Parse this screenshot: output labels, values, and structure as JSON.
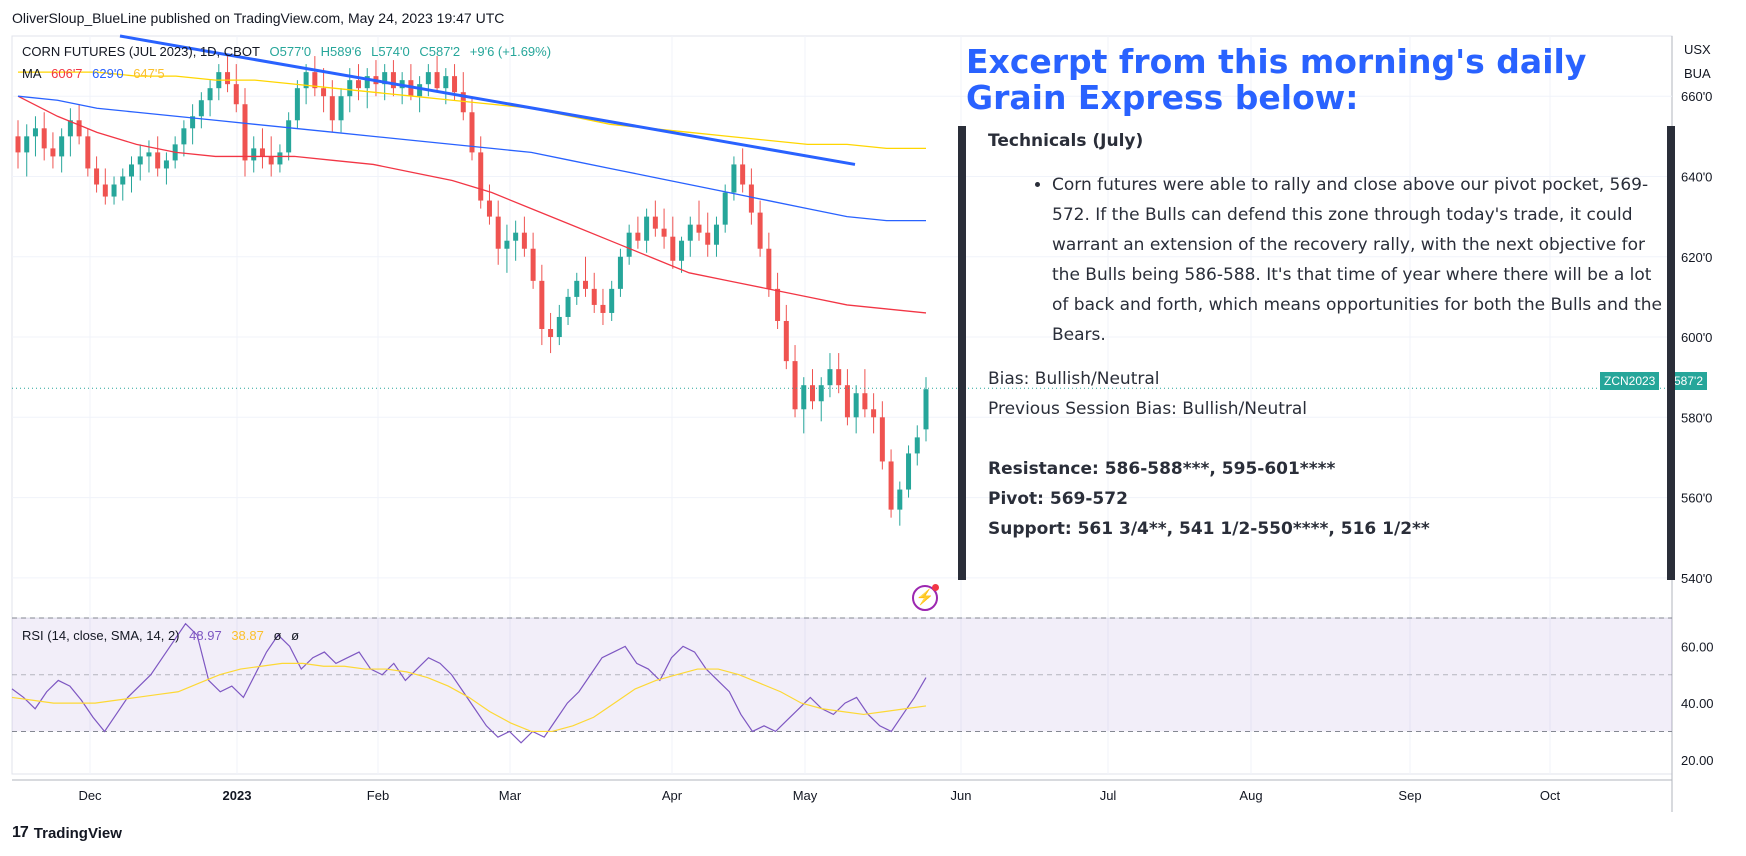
{
  "header": {
    "publisher": "OliverSloup_BlueLine published on TradingView.com, May 24, 2023 19:47 UTC"
  },
  "footer": {
    "brand": "TradingView",
    "logo_glyph": "17"
  },
  "legend": {
    "symbol_line": "CORN FUTURES (JUL 2023), 1D, CBOT",
    "ohlc": {
      "o": "O577'0",
      "h": "H589'6",
      "l": "L574'0",
      "c": "C587'2",
      "chg": "+9'6 (+1.69%)"
    },
    "ma_label": "MA",
    "ma_values": [
      "606'7",
      "629'0",
      "647'5"
    ],
    "rsi_line": "RSI (14, close, SMA, 14, 2)",
    "rsi_value": "48.97",
    "rsi_sma": "38.87",
    "rsi_extra": [
      "ø",
      "ø"
    ]
  },
  "axis": {
    "currency": "USX",
    "unit": "BUA",
    "price_ticks": [
      "660'0",
      "640'0",
      "620'0",
      "600'0",
      "580'0",
      "560'0",
      "540'0"
    ],
    "rsi_ticks": [
      "60.00",
      "40.00",
      "20.00"
    ],
    "time_ticks": [
      "Dec",
      "2023",
      "Feb",
      "Mar",
      "Apr",
      "May",
      "Jun",
      "Jul",
      "Aug",
      "Sep",
      "Oct"
    ],
    "last_symbol": "ZCN2023",
    "last_price": "587'2"
  },
  "colors": {
    "up": "#26a69a",
    "down": "#ef5350",
    "ma1": "#f23645",
    "ma2": "#2962ff",
    "ma3": "#ffd600",
    "rsi": "#7e57c2",
    "rsi_sma": "#fdd835",
    "trend": "#2962ff",
    "excerpt": "#2962ff"
  },
  "overlay": {
    "title": "Excerpt from this morning's daily Grain Express below:",
    "heading": "Technicals (July)",
    "bullet": "Corn futures were able to rally and close above our pivot pocket, 569-572.  If the Bulls can defend this zone through today's trade, it could warrant an extension of the recovery rally, with the next objective for the Bulls being 586-588.  It's that time of year where there will be a lot of back and forth, which means opportunities for both the Bulls and the Bears.",
    "bias": "Bias: Bullish/Neutral",
    "prev_bias": "Previous Session Bias: Bullish/Neutral",
    "resistance": "Resistance: 586-588***, 595-601****",
    "pivot": "Pivot: 569-572",
    "support": "Support: 561 3/4**, 541 1/2-550****, 516 1/2**"
  },
  "chart_data": [
    {
      "type": "candlestick",
      "title": "CORN FUTURES (JUL 2023), 1D, CBOT",
      "ylim": [
        530,
        675
      ],
      "grid": true,
      "candles_ohlc": [
        [
          650,
          654,
          642,
          646
        ],
        [
          646,
          653,
          640,
          650
        ],
        [
          650,
          655,
          645,
          652
        ],
        [
          652,
          656,
          644,
          647
        ],
        [
          647,
          651,
          642,
          645
        ],
        [
          645,
          652,
          641,
          650
        ],
        [
          650,
          657,
          645,
          654
        ],
        [
          654,
          658,
          648,
          650
        ],
        [
          650,
          652,
          640,
          642
        ],
        [
          642,
          645,
          636,
          638
        ],
        [
          638,
          642,
          633,
          635
        ],
        [
          635,
          640,
          633,
          638
        ],
        [
          638,
          642,
          634,
          640
        ],
        [
          640,
          645,
          636,
          643
        ],
        [
          643,
          648,
          639,
          645
        ],
        [
          645,
          649,
          641,
          646
        ],
        [
          646,
          650,
          640,
          642
        ],
        [
          642,
          646,
          638,
          644
        ],
        [
          644,
          650,
          642,
          648
        ],
        [
          648,
          654,
          645,
          652
        ],
        [
          652,
          658,
          648,
          655
        ],
        [
          655,
          661,
          652,
          659
        ],
        [
          659,
          664,
          655,
          662
        ],
        [
          662,
          668,
          659,
          666
        ],
        [
          666,
          670,
          661,
          663
        ],
        [
          663,
          668,
          656,
          658
        ],
        [
          658,
          662,
          640,
          644
        ],
        [
          644,
          650,
          641,
          647
        ],
        [
          647,
          652,
          642,
          645
        ],
        [
          645,
          650,
          640,
          643
        ],
        [
          643,
          648,
          641,
          646
        ],
        [
          646,
          656,
          644,
          654
        ],
        [
          654,
          664,
          652,
          662
        ],
        [
          662,
          668,
          658,
          666
        ],
        [
          666,
          670,
          660,
          662
        ],
        [
          662,
          667,
          656,
          660
        ],
        [
          660,
          664,
          651,
          654
        ],
        [
          654,
          662,
          651,
          660
        ],
        [
          660,
          667,
          656,
          664
        ],
        [
          664,
          668,
          659,
          662
        ],
        [
          662,
          667,
          657,
          665
        ],
        [
          665,
          669,
          660,
          663
        ],
        [
          663,
          668,
          659,
          666
        ],
        [
          666,
          669,
          660,
          662
        ],
        [
          662,
          666,
          658,
          664
        ],
        [
          664,
          668,
          659,
          660
        ],
        [
          660,
          665,
          656,
          663
        ],
        [
          663,
          668,
          660,
          666
        ],
        [
          666,
          670,
          661,
          662
        ],
        [
          662,
          667,
          658,
          665
        ],
        [
          665,
          668,
          659,
          661
        ],
        [
          661,
          666,
          654,
          656
        ],
        [
          656,
          660,
          644,
          646
        ],
        [
          646,
          650,
          632,
          634
        ],
        [
          634,
          638,
          628,
          630
        ],
        [
          630,
          634,
          618,
          622
        ],
        [
          622,
          628,
          616,
          624
        ],
        [
          624,
          629,
          619,
          626
        ],
        [
          626,
          630,
          620,
          622
        ],
        [
          622,
          626,
          612,
          614
        ],
        [
          614,
          618,
          598,
          602
        ],
        [
          602,
          606,
          596,
          600
        ],
        [
          600,
          608,
          598,
          605
        ],
        [
          605,
          612,
          603,
          610
        ],
        [
          610,
          616,
          608,
          614
        ],
        [
          614,
          620,
          610,
          612
        ],
        [
          612,
          616,
          606,
          608
        ],
        [
          608,
          612,
          603,
          606
        ],
        [
          606,
          614,
          604,
          612
        ],
        [
          612,
          622,
          610,
          620
        ],
        [
          620,
          628,
          618,
          626
        ],
        [
          626,
          630,
          622,
          624
        ],
        [
          624,
          632,
          621,
          630
        ],
        [
          630,
          634,
          625,
          627
        ],
        [
          627,
          632,
          622,
          625
        ],
        [
          625,
          630,
          617,
          619
        ],
        [
          619,
          625,
          616,
          624
        ],
        [
          624,
          630,
          620,
          628
        ],
        [
          628,
          634,
          624,
          626
        ],
        [
          626,
          631,
          620,
          623
        ],
        [
          623,
          630,
          620,
          628
        ],
        [
          628,
          638,
          626,
          636
        ],
        [
          636,
          645,
          634,
          643
        ],
        [
          643,
          647,
          636,
          638
        ],
        [
          638,
          642,
          628,
          631
        ],
        [
          631,
          634,
          620,
          622
        ],
        [
          622,
          626,
          610,
          612
        ],
        [
          612,
          616,
          602,
          604
        ],
        [
          604,
          608,
          592,
          594
        ],
        [
          594,
          598,
          580,
          582
        ],
        [
          582,
          590,
          576,
          588
        ],
        [
          588,
          592,
          582,
          584
        ],
        [
          584,
          590,
          579,
          588
        ],
        [
          588,
          596,
          585,
          592
        ],
        [
          592,
          596,
          586,
          588
        ],
        [
          588,
          592,
          578,
          580
        ],
        [
          580,
          588,
          576,
          586
        ],
        [
          586,
          592,
          580,
          582
        ],
        [
          582,
          586,
          576,
          580
        ],
        [
          580,
          584,
          567,
          569
        ],
        [
          569,
          572,
          555,
          557
        ],
        [
          557,
          564,
          553,
          562
        ],
        [
          562,
          573,
          560,
          571
        ],
        [
          571,
          578,
          568,
          575
        ],
        [
          577,
          590,
          574,
          587
        ]
      ],
      "ma_series": [
        {
          "name": "MA",
          "values": [
            660,
            655,
            651,
            648,
            646,
            645,
            645,
            645,
            644,
            643,
            641,
            639,
            636,
            632,
            628,
            624,
            620,
            616,
            614,
            612,
            610,
            608,
            607,
            606
          ]
        },
        {
          "name": "MA",
          "values": [
            660,
            659,
            657,
            656,
            655,
            654,
            653,
            652,
            651,
            650,
            649,
            648,
            647,
            646,
            644,
            642,
            640,
            638,
            636,
            634,
            632,
            630,
            629,
            629
          ]
        },
        {
          "name": "MA",
          "values": [
            666,
            666,
            666,
            665,
            665,
            664,
            664,
            663,
            662,
            661,
            660,
            659,
            658,
            657,
            655,
            653,
            652,
            651,
            650,
            649,
            648,
            648,
            647,
            647
          ]
        }
      ],
      "trendline": [
        {
          "x": "Nov 28",
          "y": 675
        },
        {
          "x": "May 12",
          "y": 643
        }
      ],
      "last_price": 587.25
    },
    {
      "type": "line",
      "title": "RSI (14, close, SMA, 14, 2)",
      "ylim": [
        15,
        70
      ],
      "bands": [
        30,
        50,
        70
      ],
      "series": [
        {
          "name": "RSI",
          "values": [
            45,
            42,
            38,
            44,
            48,
            46,
            41,
            35,
            30,
            36,
            42,
            46,
            50,
            56,
            62,
            68,
            64,
            48,
            44,
            46,
            42,
            50,
            58,
            64,
            60,
            52,
            56,
            58,
            54,
            56,
            58,
            52,
            50,
            54,
            48,
            52,
            56,
            54,
            50,
            44,
            38,
            32,
            28,
            30,
            26,
            30,
            28,
            34,
            40,
            44,
            50,
            56,
            58,
            60,
            54,
            52,
            48,
            56,
            60,
            58,
            52,
            48,
            44,
            36,
            30,
            32,
            30,
            34,
            38,
            42,
            38,
            36,
            40,
            42,
            36,
            32,
            30,
            36,
            42,
            49
          ]
        },
        {
          "name": "RSI SMA",
          "values": [
            42,
            41,
            40,
            40,
            40,
            41,
            42,
            43,
            44,
            47,
            50,
            52,
            53,
            54,
            54,
            53,
            53,
            52,
            52,
            51,
            49,
            46,
            42,
            37,
            33,
            30,
            30,
            32,
            35,
            40,
            45,
            48,
            50,
            52,
            52,
            50,
            47,
            44,
            40,
            38,
            37,
            36,
            37,
            38,
            39
          ]
        }
      ]
    }
  ]
}
